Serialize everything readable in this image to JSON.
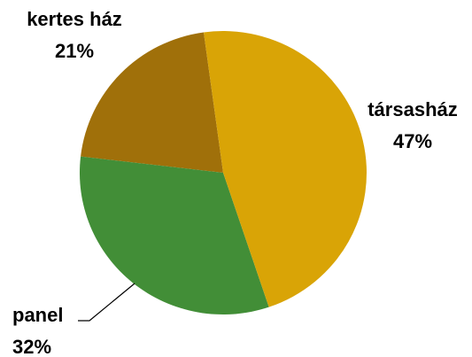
{
  "chart_data": {
    "type": "pie",
    "categories": [
      "társasház",
      "panel",
      "kertes ház"
    ],
    "values": [
      47,
      32,
      21
    ],
    "value_labels": [
      "47%",
      "32%",
      "21%"
    ],
    "colors": [
      "#d9a406",
      "#428e37",
      "#a0700a"
    ]
  }
}
